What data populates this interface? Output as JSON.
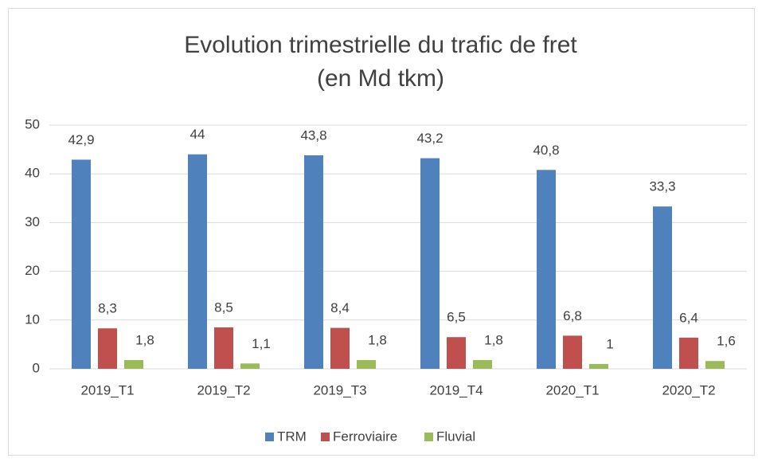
{
  "chart_data": {
    "type": "bar",
    "title": "Evolution trimestrielle du trafic de fret",
    "subtitle": "(en Md tkm)",
    "categories": [
      "2019_T1",
      "2019_T2",
      "2019_T3",
      "2019_T4",
      "2020_T1",
      "2020_T2"
    ],
    "series": [
      {
        "name": "TRM",
        "color": "#4f81bd",
        "values": [
          42.9,
          44,
          43.8,
          43.2,
          40.8,
          33.3
        ],
        "value_labels": [
          "42,9",
          "44",
          "43,8",
          "43,2",
          "40,8",
          "33,3"
        ]
      },
      {
        "name": "Ferroviaire",
        "color": "#c0504d",
        "values": [
          8.3,
          8.5,
          8.4,
          6.5,
          6.8,
          6.4
        ],
        "value_labels": [
          "8,3",
          "8,5",
          "8,4",
          "6,5",
          "6,8",
          "6,4"
        ]
      },
      {
        "name": "Fluvial",
        "color": "#9bbb59",
        "values": [
          1.8,
          1.1,
          1.8,
          1.8,
          1,
          1.6
        ],
        "value_labels": [
          "1,8",
          "1,1",
          "1,8",
          "1,8",
          "1",
          "1,6"
        ]
      }
    ],
    "ylim": [
      0,
      50
    ],
    "yticks": [
      0,
      10,
      20,
      30,
      40,
      50
    ],
    "grid": true,
    "legend": "bottom"
  }
}
